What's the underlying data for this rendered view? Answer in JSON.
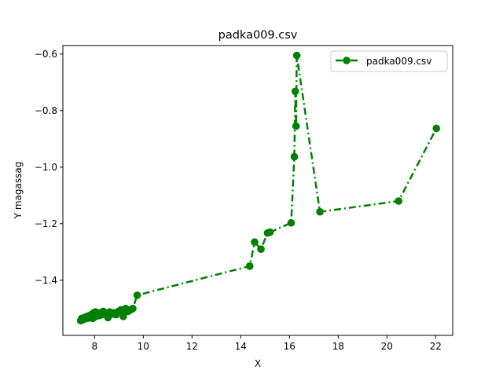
{
  "chart_data": {
    "type": "line",
    "title": "padka009.csv",
    "xlabel": "X",
    "ylabel": "Y magassag",
    "xlim": [
      6.7,
      22.7
    ],
    "ylim": [
      -1.595,
      -0.57
    ],
    "xticks": [
      8,
      10,
      12,
      14,
      16,
      18,
      20,
      22
    ],
    "yticks": [
      -1.4,
      -1.2,
      -1.0,
      -0.8,
      -0.6
    ],
    "ytick_labels": [
      "−1.4",
      "−1.2",
      "−1.0",
      "−0.8",
      "−0.6"
    ],
    "grid": false,
    "legend": {
      "position": "top-right"
    },
    "series": [
      {
        "name": "padka009.csv",
        "color": "#008000",
        "line_style": "dash-dot",
        "marker": "circle",
        "x": [
          7.43,
          7.47,
          7.52,
          7.58,
          7.63,
          7.68,
          7.74,
          7.79,
          7.84,
          7.89,
          7.93,
          7.97,
          8.0,
          8.04,
          8.08,
          8.13,
          8.18,
          8.24,
          8.3,
          8.36,
          8.42,
          8.48,
          8.55,
          8.62,
          8.7,
          8.78,
          8.88,
          8.98,
          9.08,
          9.18,
          9.28,
          9.38,
          9.47,
          9.57,
          9.75,
          14.37,
          14.57,
          14.83,
          15.1,
          15.2,
          16.07,
          16.2,
          16.24,
          16.27,
          16.3,
          17.25,
          20.48,
          22.03
        ],
        "y": [
          -1.543,
          -1.535,
          -1.54,
          -1.532,
          -1.536,
          -1.528,
          -1.534,
          -1.525,
          -1.532,
          -1.52,
          -1.535,
          -1.515,
          -1.53,
          -1.512,
          -1.527,
          -1.518,
          -1.525,
          -1.515,
          -1.522,
          -1.51,
          -1.518,
          -1.52,
          -1.532,
          -1.512,
          -1.52,
          -1.515,
          -1.522,
          -1.51,
          -1.505,
          -1.528,
          -1.5,
          -1.51,
          -1.505,
          -1.5,
          -1.453,
          -1.35,
          -1.265,
          -1.29,
          -1.233,
          -1.23,
          -1.197,
          -0.963,
          -0.732,
          -0.855,
          -0.605,
          -1.158,
          -1.12,
          -0.863
        ]
      }
    ]
  }
}
